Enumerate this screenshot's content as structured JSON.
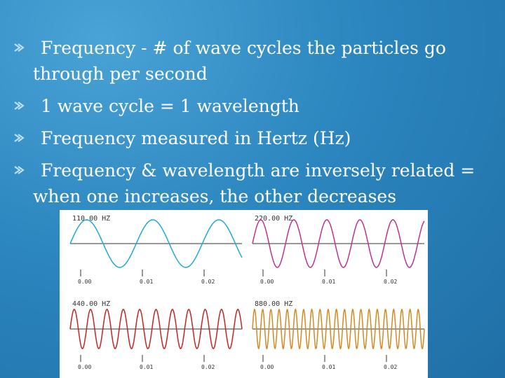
{
  "bullets": [
    {
      "text": "Frequency - # of wave cycles the particles go through per second"
    },
    {
      "text": "1 wave cycle = 1 wavelength"
    },
    {
      "text": "Frequency measured in Hertz (Hz)"
    },
    {
      "text": "Frequency & wavelength are inversely related = when one increases, the other decreases"
    }
  ],
  "figure": {
    "panels": [
      {
        "label": "110.00 HZ",
        "ticks": [
          "0.00",
          "0.01",
          "0.02"
        ]
      },
      {
        "label": "220.00 HZ",
        "ticks": [
          "0.00",
          "0.01",
          "0.02"
        ]
      },
      {
        "label": "440.00 HZ",
        "ticks": [
          "0.00",
          "0.01",
          "0.02"
        ]
      },
      {
        "label": "880.00 HZ",
        "ticks": [
          "0.00",
          "0.01",
          "0.02"
        ]
      }
    ]
  }
}
